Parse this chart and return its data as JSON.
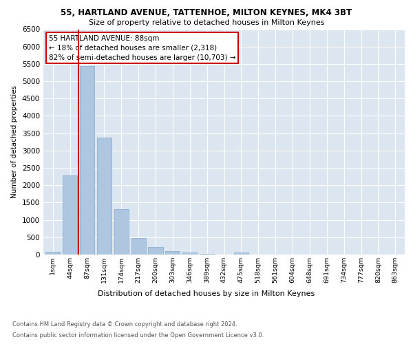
{
  "title1": "55, HARTLAND AVENUE, TATTENHOE, MILTON KEYNES, MK4 3BT",
  "title2": "Size of property relative to detached houses in Milton Keynes",
  "xlabel": "Distribution of detached houses by size in Milton Keynes",
  "ylabel": "Number of detached properties",
  "categories": [
    "1sqm",
    "44sqm",
    "87sqm",
    "131sqm",
    "174sqm",
    "217sqm",
    "260sqm",
    "303sqm",
    "346sqm",
    "389sqm",
    "432sqm",
    "475sqm",
    "518sqm",
    "561sqm",
    "604sqm",
    "648sqm",
    "691sqm",
    "734sqm",
    "777sqm",
    "820sqm",
    "863sqm"
  ],
  "values": [
    80,
    2280,
    5430,
    3380,
    1310,
    470,
    210,
    95,
    55,
    20,
    5,
    55,
    0,
    0,
    0,
    0,
    0,
    0,
    0,
    0,
    0
  ],
  "bar_color": "#aec6df",
  "bar_edge_color": "#8ab0cf",
  "vline_x_index": 2,
  "vline_color": "#cc0000",
  "annotation_text": "55 HARTLAND AVENUE: 88sqm\n← 18% of detached houses are smaller (2,318)\n82% of semi-detached houses are larger (10,703) →",
  "annotation_box_color": "#ffffff",
  "annotation_box_edge": "#cc0000",
  "ylim": [
    0,
    6500
  ],
  "yticks": [
    0,
    500,
    1000,
    1500,
    2000,
    2500,
    3000,
    3500,
    4000,
    4500,
    5000,
    5500,
    6000,
    6500
  ],
  "background_color": "#dce6f0",
  "footer1": "Contains HM Land Registry data © Crown copyright and database right 2024.",
  "footer2": "Contains public sector information licensed under the Open Government Licence v3.0."
}
